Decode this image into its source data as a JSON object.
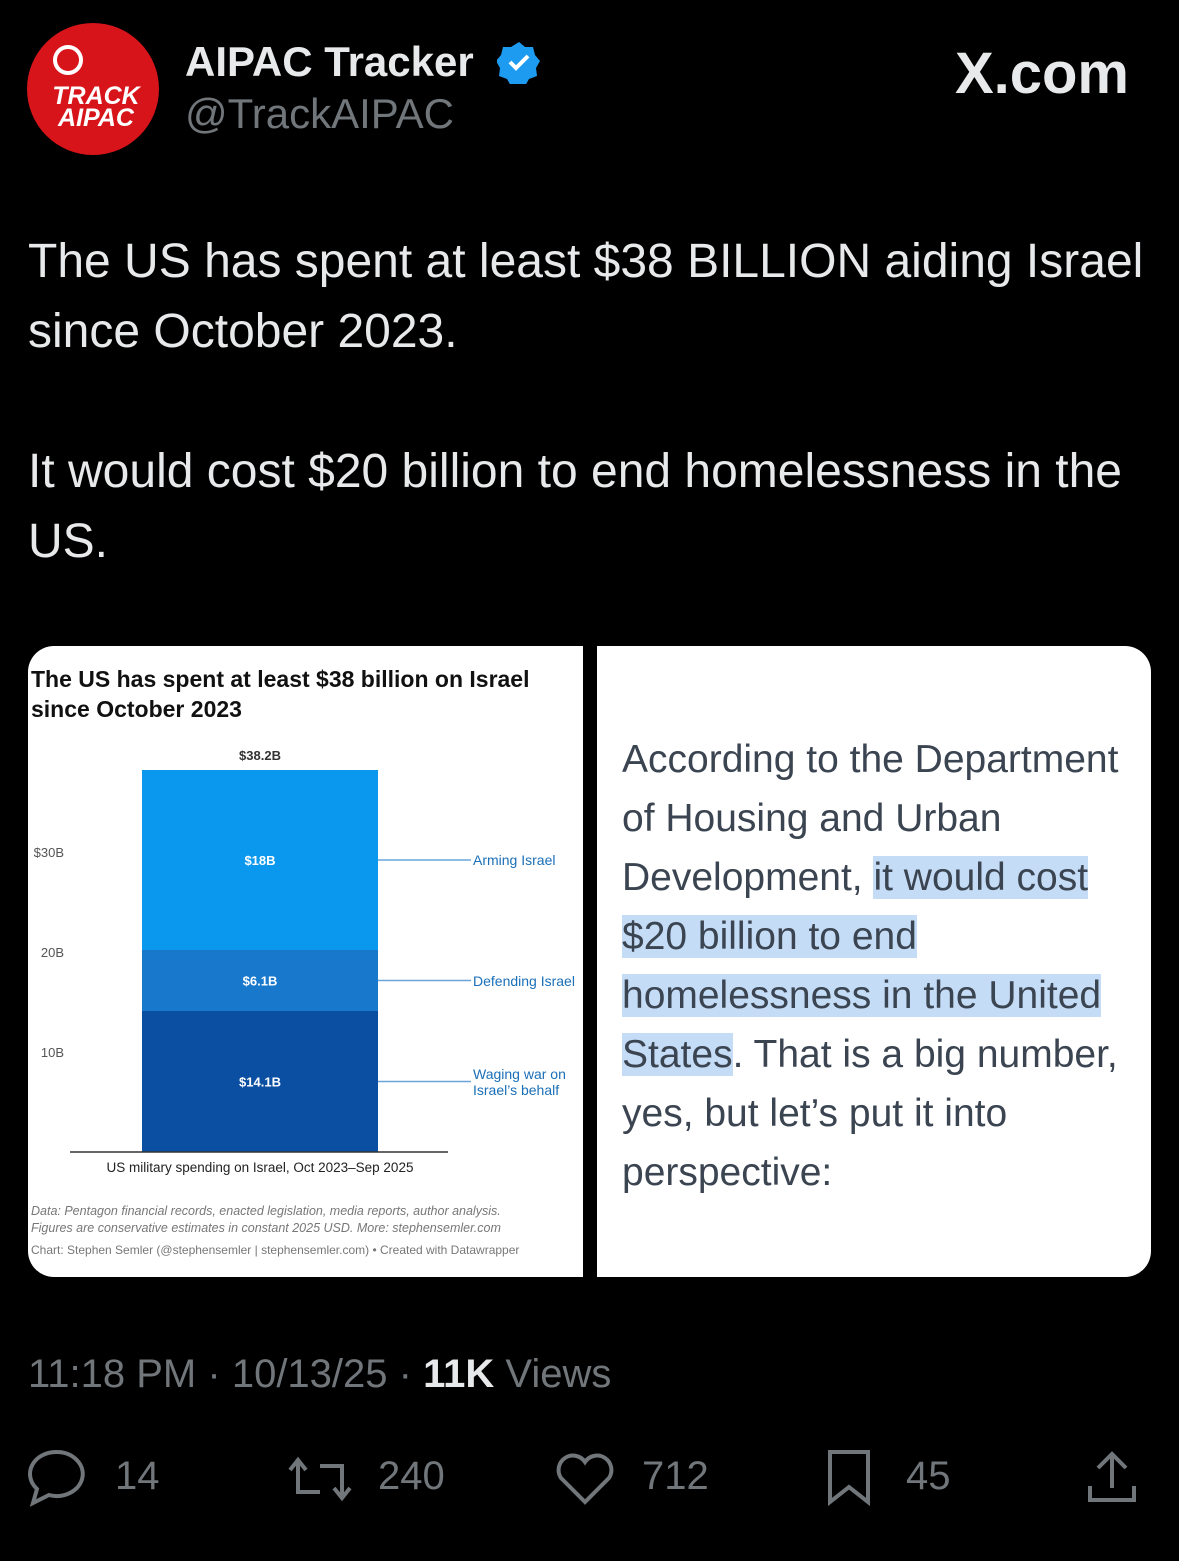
{
  "author": {
    "name": "AIPAC Tracker",
    "handle": "@TrackAIPAC",
    "avatar_text": [
      "TRACK",
      "AIPAC"
    ]
  },
  "site": "X.com",
  "tweet_text": [
    "The US has spent at least $38 BILLION aiding Israel since October 2023.",
    "It would cost $20 billion to end homelessness in the US."
  ],
  "chart_data": {
    "type": "bar",
    "stacked": true,
    "title": "The US has spent at least $38 billion on Israel since October 2023",
    "x_label": "US military spending on Israel, Oct 2023–Sep 2025",
    "categories": [
      null
    ],
    "series": [
      {
        "name": "Waging war on Israel’s behalf",
        "color": "#0b4fa3",
        "values": [
          14.1
        ],
        "value_labels": [
          "$14.1B"
        ]
      },
      {
        "name": "Defending Israel",
        "color": "#1778cc",
        "values": [
          6.1
        ],
        "value_labels": [
          "$6.1B"
        ]
      },
      {
        "name": "Arming Israel",
        "color": "#0a98ef",
        "values": [
          18
        ],
        "value_labels": [
          "$18B"
        ]
      }
    ],
    "total": {
      "value": 38.2,
      "label": "$38.2B"
    },
    "ylim": [
      0,
      40
    ],
    "yticks": [
      {
        "value": 10,
        "label": "10B"
      },
      {
        "value": 20,
        "label": "20B"
      },
      {
        "value": 30,
        "label": "$30B"
      }
    ],
    "grid": false,
    "source": [
      "Data: Pentagon financial records, enacted legislation, media reports, author analysis.",
      "Figures are conservative estimates in constant 2025 USD. More: stephensemler.com",
      "Chart: Stephen Semler (@stephensemler | stephensemler.com) • Created with Datawrapper"
    ]
  },
  "quote_image": {
    "segments": [
      {
        "text": "According to the Department of Housing and Urban Development, ",
        "highlighted": false
      },
      {
        "text": "it would cost $20 billion to end homelessness in the United States",
        "highlighted": true
      },
      {
        "text": ". That is a big number, yes, but let’s put it into perspective:",
        "highlighted": false
      }
    ]
  },
  "meta": {
    "time": "11:18 PM",
    "separator": "·",
    "date": "10/13/25",
    "views_count": "11K",
    "views_label": "Views"
  },
  "actions": {
    "replies": 14,
    "reposts": 240,
    "likes": 712,
    "bookmarks": 45
  }
}
